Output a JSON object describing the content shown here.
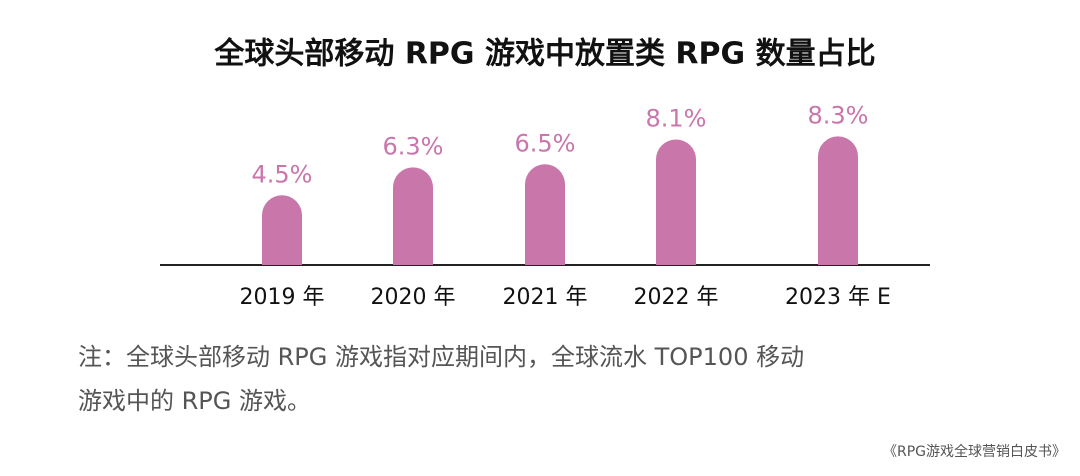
{
  "chart_data": {
    "type": "bar",
    "title": "全球头部移动 RPG 游戏中放置类 RPG 数量占比",
    "categories": [
      "2019 年",
      "2020 年",
      "2021 年",
      "2022 年",
      "2023 年 E"
    ],
    "values": [
      4.5,
      6.3,
      6.5,
      8.1,
      8.3
    ],
    "value_labels": [
      "4.5%",
      "6.3%",
      "6.5%",
      "8.1%",
      "8.3%"
    ],
    "color": "#c976ab"
  },
  "note": {
    "lines": [
      "注：全球头部移动 RPG 游戏指对应期间内，全球流水 TOP100 移动",
      "游戏中的 RPG 游戏。"
    ]
  },
  "source": "《RPG游戏全球营销白皮书》"
}
